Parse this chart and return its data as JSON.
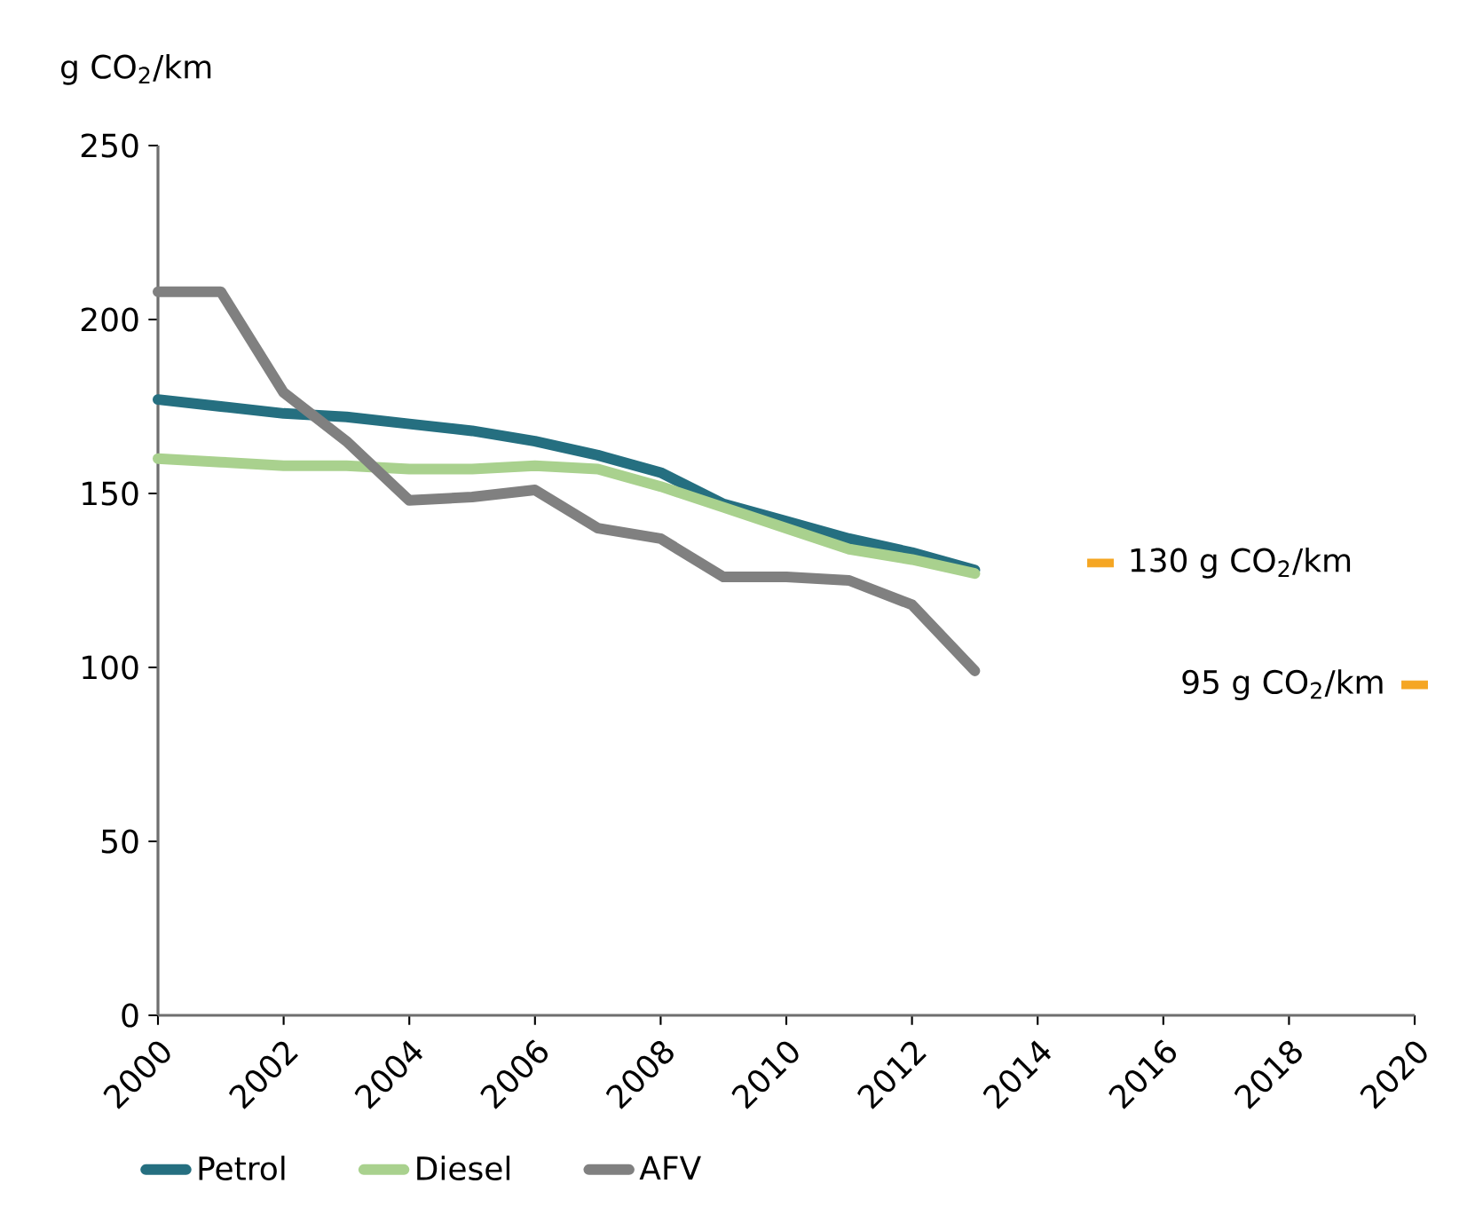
{
  "chart_data": {
    "type": "line",
    "ylabel": "g CO$_{2}$/km",
    "x": [
      2000,
      2001,
      2002,
      2003,
      2004,
      2005,
      2006,
      2007,
      2008,
      2009,
      2010,
      2011,
      2012,
      2013
    ],
    "series": [
      {
        "name": "Petrol",
        "color": "#256f80",
        "values": [
          177,
          175,
          173,
          172,
          170,
          168,
          165,
          161,
          156,
          147,
          142,
          137,
          133,
          128
        ]
      },
      {
        "name": "Diesel",
        "color": "#a9d18e",
        "values": [
          160,
          159,
          158,
          158,
          157,
          157,
          158,
          157,
          152,
          146,
          140,
          134,
          131,
          127
        ]
      },
      {
        "name": "AFV",
        "color": "#808080",
        "values": [
          208,
          208,
          179,
          165,
          148,
          149,
          151,
          140,
          137,
          126,
          126,
          125,
          118,
          99
        ]
      },
      {
        "type": "scatter",
        "color": "#f5a623",
        "x": [
          2015,
          2020
        ],
        "values": [
          130,
          95
        ]
      }
    ],
    "annotations": [
      {
        "text": "130 g CO$_{2}$/km",
        "x": 2015,
        "y": 130
      },
      {
        "text": "95 g CO$_{2}$/km",
        "x": 2020,
        "y": 95
      }
    ],
    "xlim": [
      2000,
      2020
    ],
    "xticks": [
      2000,
      2002,
      2004,
      2006,
      2008,
      2010,
      2012,
      2014,
      2016,
      2018,
      2020
    ],
    "ylim": [
      0,
      250
    ],
    "yticks": [
      0,
      50,
      100,
      150,
      200,
      250
    ],
    "legend": "bottom"
  }
}
